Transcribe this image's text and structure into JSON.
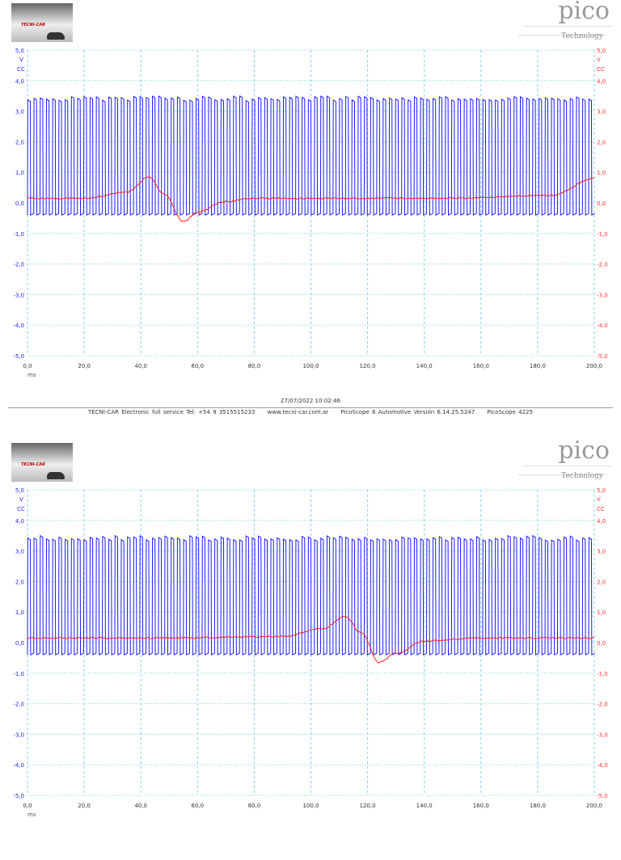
{
  "header": {
    "left_logo_text": "TECNI-CAR",
    "right_logo_text": "pico",
    "right_logo_subtext": "Technology"
  },
  "axis": {
    "left_unit": "V",
    "left_coupling": "CC",
    "right_unit": "V",
    "right_coupling": "CC",
    "y_ticks": [
      "5,0",
      "4,0",
      "3,0",
      "2,0",
      "1,0",
      "0,0",
      "-1,0",
      "-2,0",
      "-3,0",
      "-4,0",
      "-5,0"
    ],
    "x_ticks": [
      "0,0",
      "20,0",
      "40,0",
      "60,0",
      "80,0",
      "100,0",
      "120,0",
      "140,0",
      "160,0",
      "180,0",
      "200,0"
    ],
    "x_unit": "ms"
  },
  "colors": {
    "channel_a": "#1a1aff",
    "channel_b": "#ff2020",
    "grid": "#7fd3e0",
    "left_axis": "#2222ff",
    "right_axis": "#ff3333"
  },
  "chart_data": [
    {
      "type": "line",
      "xlim": [
        0,
        200
      ],
      "ylim": [
        -5,
        5
      ],
      "grid": true,
      "series": [
        {
          "channel": "A",
          "color": "#1a1aff",
          "waveform": "square",
          "min": -0.4,
          "max": 3.5,
          "period_ms": 2.2
        },
        {
          "channel": "B",
          "color": "#ff2020",
          "x": [
            0,
            20,
            35,
            43,
            48,
            55,
            60,
            70,
            80,
            100,
            150,
            185,
            200
          ],
          "y": [
            0.15,
            0.15,
            0.35,
            0.85,
            0.3,
            -0.6,
            -0.3,
            0.05,
            0.15,
            0.15,
            0.15,
            0.25,
            0.8
          ]
        }
      ]
    },
    {
      "type": "line",
      "xlim": [
        0,
        200
      ],
      "ylim": [
        -5,
        5
      ],
      "grid": true,
      "series": [
        {
          "channel": "A",
          "color": "#1a1aff",
          "waveform": "square",
          "min": -0.4,
          "max": 3.5,
          "period_ms": 2.2
        },
        {
          "channel": "B",
          "color": "#ff2020",
          "x": [
            0,
            50,
            90,
            104,
            112,
            118,
            124,
            130,
            140,
            160,
            200
          ],
          "y": [
            0.15,
            0.15,
            0.2,
            0.45,
            0.85,
            0.3,
            -0.65,
            -0.35,
            0.05,
            0.15,
            0.15
          ]
        }
      ]
    }
  ],
  "footer": {
    "timestamp": "27/07/2022 10:02:46",
    "company": "TECNI-CAR Electronic full service Tel: +54 9 3515515233",
    "website": "www.tecni-car.com.ar",
    "software": "PicoScope 6 Automotive Versión 6.14.25.5247",
    "device": "PicoScope 4225"
  }
}
